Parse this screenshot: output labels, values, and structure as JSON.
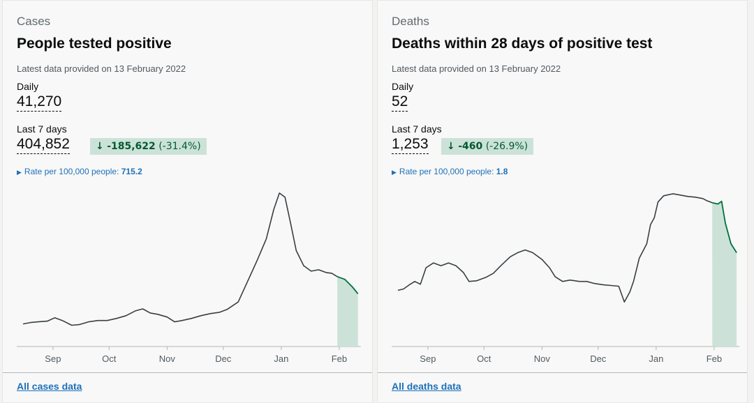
{
  "cards": [
    {
      "eyebrow": "Cases",
      "title": "People tested positive",
      "updated": "Latest data provided on 13 February 2022",
      "daily_label": "Daily",
      "daily_value": "41,270",
      "weekly_label": "Last 7 days",
      "weekly_value": "404,852",
      "change_amount": "-185,622",
      "change_percent": "(-31.4%)",
      "rate_label": "Rate per 100,000 people:",
      "rate_value": "715.2",
      "footer_link": "All cases data"
    },
    {
      "eyebrow": "Deaths",
      "title": "Deaths within 28 days of positive test",
      "updated": "Latest data provided on 13 February 2022",
      "daily_label": "Daily",
      "daily_value": "52",
      "weekly_label": "Last 7 days",
      "weekly_value": "1,253",
      "change_amount": "-460",
      "change_percent": "(-26.9%)",
      "rate_label": "Rate per 100,000 people:",
      "rate_value": "1.8",
      "footer_link": "All deaths data"
    }
  ],
  "colors": {
    "line": "#383f43",
    "recent_line": "#00703c",
    "recent_fill": "#cce2d8",
    "axis": "#b1b4b6",
    "change_bg": "#cce2d8",
    "change_text": "#005a30",
    "link": "#1d70b8"
  },
  "chart_data": [
    {
      "type": "area",
      "x_unit": "day",
      "x_start": "2021-08-16",
      "x_end": "2022-02-13",
      "xticks": [
        {
          "label": "Sep",
          "day": 16
        },
        {
          "label": "Oct",
          "day": 46
        },
        {
          "label": "Nov",
          "day": 77
        },
        {
          "label": "Dec",
          "day": 107
        },
        {
          "label": "Jan",
          "day": 138
        },
        {
          "label": "Feb",
          "day": 169
        }
      ],
      "ylim": [
        0,
        230000
      ],
      "recent_from_day": 168,
      "series": [
        {
          "values": [
            [
              0,
              33000
            ],
            [
              4,
              35000
            ],
            [
              8,
              36000
            ],
            [
              13,
              37000
            ],
            [
              17,
              42000
            ],
            [
              21,
              38000
            ],
            [
              26,
              31000
            ],
            [
              30,
              32000
            ],
            [
              35,
              36000
            ],
            [
              40,
              38000
            ],
            [
              45,
              38000
            ],
            [
              50,
              41000
            ],
            [
              55,
              45000
            ],
            [
              60,
              52000
            ],
            [
              64,
              55000
            ],
            [
              68,
              49000
            ],
            [
              72,
              47000
            ],
            [
              77,
              43000
            ],
            [
              81,
              36000
            ],
            [
              85,
              38000
            ],
            [
              90,
              41000
            ],
            [
              95,
              45000
            ],
            [
              100,
              48000
            ],
            [
              105,
              50000
            ],
            [
              109,
              54000
            ],
            [
              115,
              65000
            ],
            [
              120,
              95000
            ],
            [
              125,
              125000
            ],
            [
              130,
              157000
            ],
            [
              134,
              200000
            ],
            [
              137,
              224000
            ],
            [
              140,
              218000
            ],
            [
              143,
              180000
            ],
            [
              146,
              140000
            ],
            [
              150,
              118000
            ],
            [
              154,
              110000
            ],
            [
              158,
              112000
            ],
            [
              162,
              108000
            ],
            [
              165,
              107000
            ],
            [
              168,
              102000
            ],
            [
              172,
              98000
            ],
            [
              176,
              87000
            ],
            [
              179,
              77000
            ]
          ]
        }
      ]
    },
    {
      "type": "area",
      "x_unit": "day",
      "x_start": "2021-08-16",
      "x_end": "2022-02-13",
      "xticks": [
        {
          "label": "Sep",
          "day": 16
        },
        {
          "label": "Oct",
          "day": 46
        },
        {
          "label": "Nov",
          "day": 77
        },
        {
          "label": "Dec",
          "day": 107
        },
        {
          "label": "Jan",
          "day": 138
        },
        {
          "label": "Feb",
          "day": 169
        }
      ],
      "ylim": [
        0,
        230
      ],
      "recent_from_day": 168,
      "series": [
        {
          "values": [
            [
              0,
              82
            ],
            [
              3,
              84
            ],
            [
              6,
              90
            ],
            [
              9,
              95
            ],
            [
              12,
              91
            ],
            [
              15,
              115
            ],
            [
              19,
              122
            ],
            [
              23,
              118
            ],
            [
              27,
              122
            ],
            [
              31,
              118
            ],
            [
              35,
              108
            ],
            [
              38,
              95
            ],
            [
              42,
              96
            ],
            [
              47,
              101
            ],
            [
              51,
              107
            ],
            [
              55,
              118
            ],
            [
              60,
              131
            ],
            [
              64,
              137
            ],
            [
              68,
              141
            ],
            [
              72,
              137
            ],
            [
              77,
              127
            ],
            [
              81,
              115
            ],
            [
              84,
              102
            ],
            [
              88,
              95
            ],
            [
              92,
              97
            ],
            [
              97,
              95
            ],
            [
              101,
              95
            ],
            [
              105,
              92
            ],
            [
              110,
              90
            ],
            [
              114,
              89
            ],
            [
              118,
              88
            ],
            [
              121,
              65
            ],
            [
              124,
              80
            ],
            [
              126,
              96
            ],
            [
              129,
              129
            ],
            [
              133,
              150
            ],
            [
              135,
              178
            ],
            [
              137,
              188
            ],
            [
              139,
              211
            ],
            [
              142,
              220
            ],
            [
              147,
              223
            ],
            [
              151,
              221
            ],
            [
              155,
              219
            ],
            [
              159,
              218
            ],
            [
              163,
              216
            ],
            [
              165,
              213
            ],
            [
              168,
              210
            ],
            [
              171,
              208
            ],
            [
              173,
              212
            ],
            [
              175,
              180
            ],
            [
              178,
              150
            ],
            [
              181,
              137
            ]
          ]
        }
      ]
    }
  ]
}
